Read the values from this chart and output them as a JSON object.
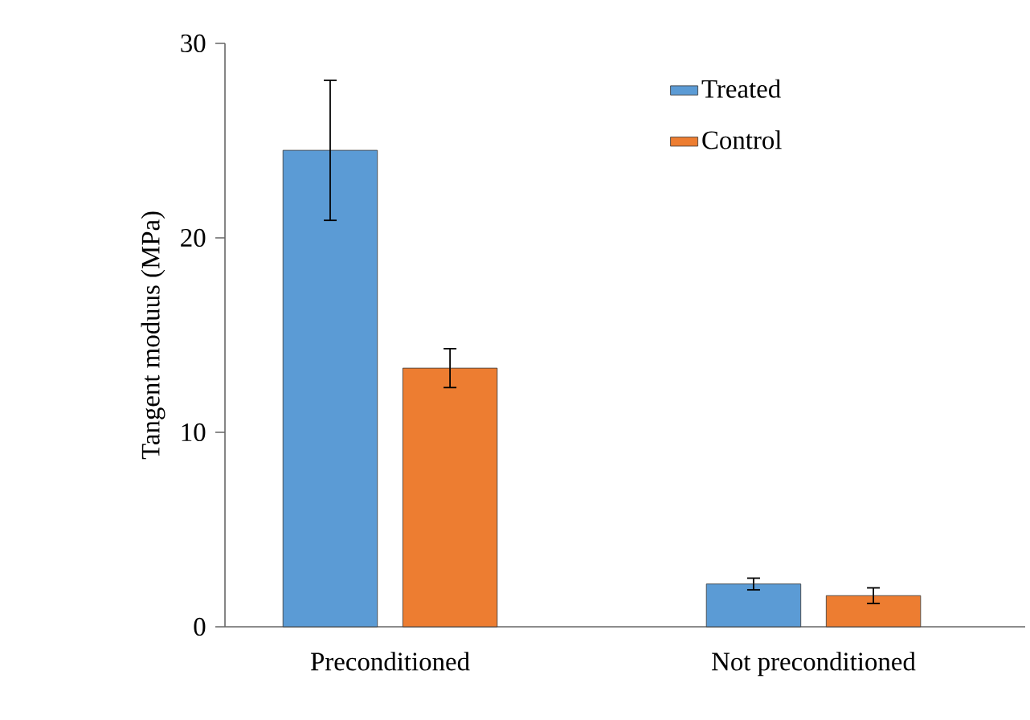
{
  "chart_data": {
    "type": "bar",
    "ylabel": "Tangent moduus (MPa)",
    "categories": [
      "Preconditioned",
      "Not preconditioned"
    ],
    "series": [
      {
        "name": "Treated",
        "color": "#5b9bd5",
        "values": [
          24.5,
          2.2
        ],
        "errors": [
          3.6,
          0.3
        ]
      },
      {
        "name": "Control",
        "color": "#ed7d31",
        "values": [
          13.3,
          1.6
        ],
        "errors": [
          1.0,
          0.4
        ]
      }
    ],
    "ylim": [
      0,
      30
    ],
    "yticks": [
      0,
      10,
      20,
      30
    ],
    "grid": false,
    "legend": "top right"
  }
}
